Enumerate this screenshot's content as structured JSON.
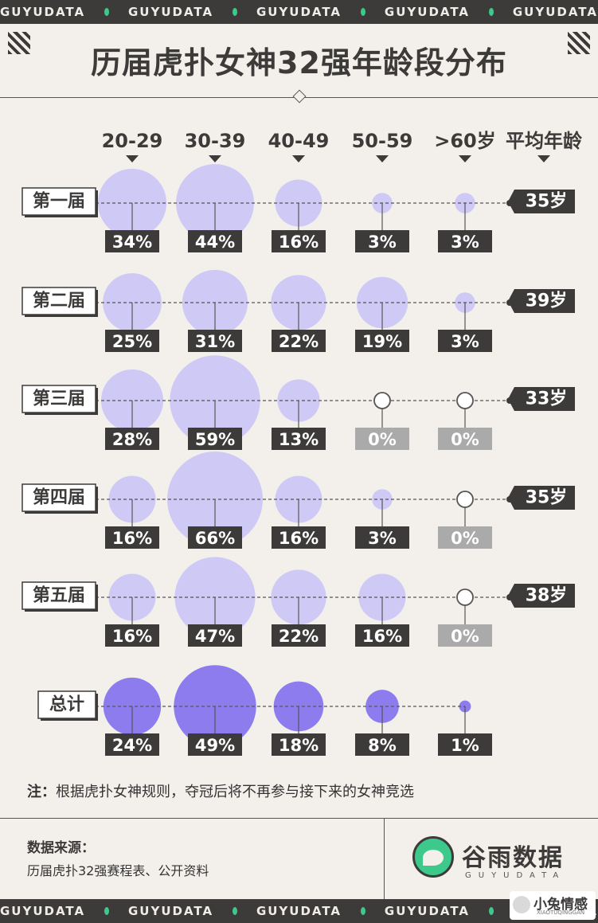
{
  "band_text": [
    "GUYUDATA",
    "GUYUDATA",
    "GUYUDATA",
    "GUYUDATA",
    "GUYUDATA"
  ],
  "title": "历届虎扑女神32强年龄段分布",
  "note_label": "注：",
  "note_text": "根据虎扑女神规则，夺冠后将不再参与接下来的女神竞选",
  "source_label": "数据来源：",
  "source_text": "历届虎扑32强赛程表、公开资料",
  "logo_name": "谷雨数据",
  "logo_sub": "GUYUDATA",
  "watermark_text": "小兔情感",
  "watermark_sub": "XIAOTUQINGGAN",
  "colors": {
    "dark": "#3d3b3a",
    "bubble_light": "#cfcaf5",
    "bubble_total": "#8c7cee",
    "zero_label": "#aaaaaa",
    "accent_green": "#3dc98c"
  },
  "chart_data": {
    "type": "bubble-matrix",
    "columns": [
      "20-29",
      "30-39",
      "40-49",
      "50-59",
      ">60岁",
      "平均年龄"
    ],
    "rows": [
      {
        "name": "第一届",
        "values": [
          34,
          44,
          16,
          3,
          3
        ],
        "labels": [
          "34%",
          "44%",
          "16%",
          "3%",
          "3%"
        ],
        "average": "35岁"
      },
      {
        "name": "第二届",
        "values": [
          25,
          31,
          22,
          19,
          3
        ],
        "labels": [
          "25%",
          "31%",
          "22%",
          "19%",
          "3%"
        ],
        "average": "39岁"
      },
      {
        "name": "第三届",
        "values": [
          28,
          59,
          13,
          0,
          0
        ],
        "labels": [
          "28%",
          "59%",
          "13%",
          "0%",
          "0%"
        ],
        "average": "33岁"
      },
      {
        "name": "第四届",
        "values": [
          16,
          66,
          16,
          3,
          0
        ],
        "labels": [
          "16%",
          "66%",
          "16%",
          "3%",
          "0%"
        ],
        "average": "35岁"
      },
      {
        "name": "第五届",
        "values": [
          16,
          47,
          22,
          16,
          0
        ],
        "labels": [
          "16%",
          "47%",
          "22%",
          "16%",
          "0%"
        ],
        "average": "38岁"
      },
      {
        "name": "总计",
        "values": [
          24,
          49,
          18,
          8,
          1
        ],
        "labels": [
          "24%",
          "49%",
          "18%",
          "8%",
          "1%"
        ],
        "average": ""
      }
    ]
  }
}
